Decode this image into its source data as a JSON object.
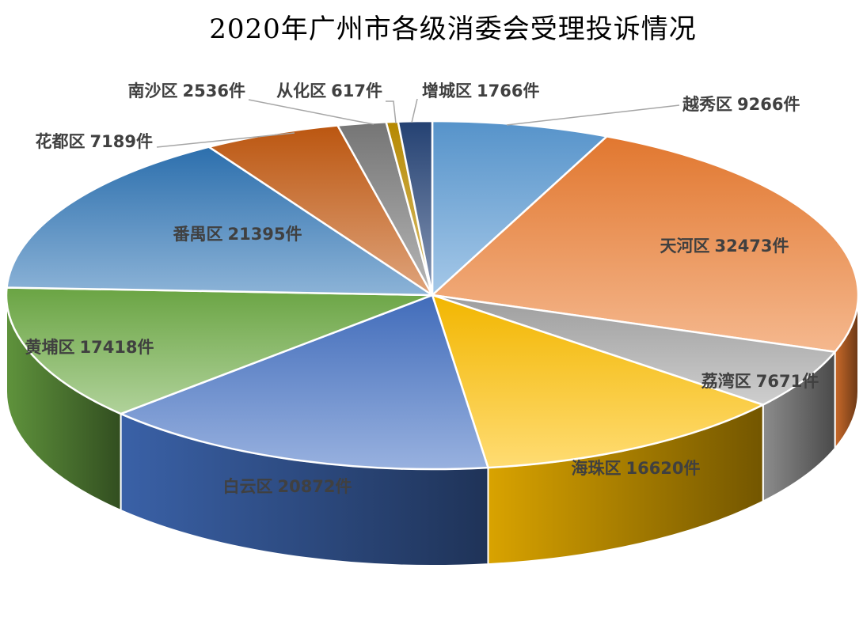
{
  "chart_data": {
    "type": "pie",
    "title": "2020年广州市各级消委会受理投诉情况",
    "unit": "件",
    "slices": [
      {
        "label": "越秀区",
        "value": 9266,
        "color": "#5b9bd5"
      },
      {
        "label": "天河区",
        "value": 32473,
        "color": "#ed7d31"
      },
      {
        "label": "荔湾区",
        "value": 7671,
        "color": "#a5a5a5"
      },
      {
        "label": "海珠区",
        "value": 16620,
        "color": "#ffc000"
      },
      {
        "label": "白云区",
        "value": 20872,
        "color": "#4472c4"
      },
      {
        "label": "黄埔区",
        "value": 17418,
        "color": "#70ad47"
      },
      {
        "label": "番禺区",
        "value": 21395,
        "color": "#2e75b6"
      },
      {
        "label": "花都区",
        "value": 7189,
        "color": "#c55a11"
      },
      {
        "label": "南沙区",
        "value": 2536,
        "color": "#7b7b7b"
      },
      {
        "label": "从化区",
        "value": 617,
        "color": "#bf8f00"
      },
      {
        "label": "增城区",
        "value": 1766,
        "color": "#264478"
      }
    ],
    "legend": "none"
  }
}
